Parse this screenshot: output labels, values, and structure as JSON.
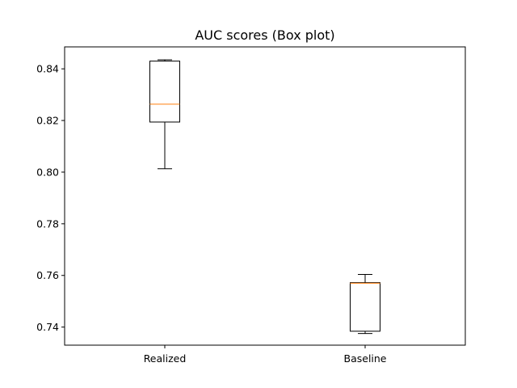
{
  "chart_data": {
    "type": "box",
    "title": "AUC scores (Box plot)",
    "xlabel": "",
    "ylabel": "",
    "categories": [
      "Realized",
      "Baseline"
    ],
    "ylim": [
      0.733,
      0.8485
    ],
    "yticks": [
      0.74,
      0.76,
      0.78,
      0.8,
      0.82,
      0.84
    ],
    "ytick_labels": [
      "0.74",
      "0.76",
      "0.78",
      "0.80",
      "0.82",
      "0.84"
    ],
    "grid": false,
    "series": [
      {
        "whisker_low": 0.8013,
        "q1": 0.8194,
        "median": 0.8263,
        "q3": 0.843,
        "whisker_high": 0.8435
      },
      {
        "whisker_low": 0.7375,
        "q1": 0.7384,
        "median": 0.757,
        "q3": 0.7572,
        "whisker_high": 0.7604
      }
    ],
    "colors": {
      "box": "#000000",
      "median": "#ff7f0e"
    }
  }
}
